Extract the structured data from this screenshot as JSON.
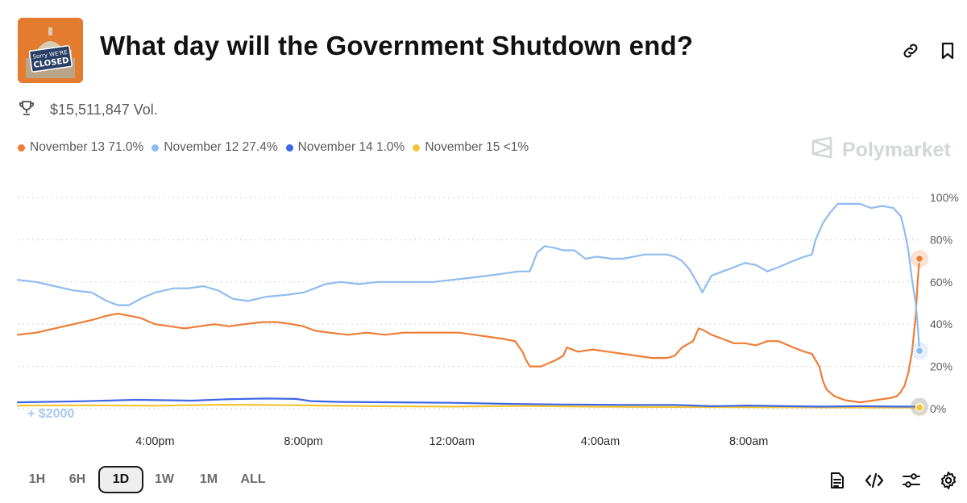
{
  "market": {
    "title": "What day will the Government Shutdown end?",
    "thumbnail_text": "CLOSED",
    "volume": "$15,511,847 Vol.",
    "brand": "Polymarket"
  },
  "legend": [
    {
      "label": "November 13 71.0%",
      "color": "#ee7d36"
    },
    {
      "label": "November 12 27.4%",
      "color": "#8fbcef"
    },
    {
      "label": "November 14 1.0%",
      "color": "#3e66e8"
    },
    {
      "label": "November 15 <1%",
      "color": "#f2c531"
    }
  ],
  "timeframes": {
    "items": [
      "1H",
      "6H",
      "1D",
      "1W",
      "1M",
      "ALL"
    ],
    "selected": "1D"
  },
  "icons": {
    "link": "link-icon",
    "bookmark": "bookmark-icon",
    "trophy": "trophy-icon",
    "document": "document-icon",
    "embed": "embed-icon",
    "filters": "sliders-icon",
    "settings": "gear-icon"
  },
  "chart_data": {
    "type": "line",
    "x_tick_labels": [
      "4:00pm",
      "8:00pm",
      "12:00am",
      "4:00am",
      "8:00am"
    ],
    "x_tick_hours": [
      4,
      8,
      12,
      16,
      20
    ],
    "x_range_hours": [
      0.3,
      24.6
    ],
    "y_tick_labels": [
      "100%",
      "80%",
      "60%",
      "40%",
      "20%",
      "0%"
    ],
    "ylim": [
      0,
      100
    ],
    "grid": true,
    "annotation": "+ $2000",
    "series": [
      {
        "name": "November 12",
        "color": "#8fbcef",
        "end_value": 27.4,
        "points": [
          [
            0.3,
            61
          ],
          [
            0.8,
            60
          ],
          [
            1.3,
            58
          ],
          [
            1.8,
            56
          ],
          [
            2.3,
            55
          ],
          [
            2.7,
            51
          ],
          [
            3.0,
            49
          ],
          [
            3.3,
            49
          ],
          [
            3.6,
            52
          ],
          [
            4.0,
            55
          ],
          [
            4.5,
            57
          ],
          [
            4.9,
            57
          ],
          [
            5.3,
            58
          ],
          [
            5.7,
            56
          ],
          [
            6.1,
            52
          ],
          [
            6.5,
            51
          ],
          [
            7.0,
            53
          ],
          [
            7.6,
            54
          ],
          [
            8.0,
            55
          ],
          [
            8.3,
            57
          ],
          [
            8.6,
            59
          ],
          [
            9.0,
            60
          ],
          [
            9.5,
            59
          ],
          [
            10.0,
            60
          ],
          [
            10.5,
            60
          ],
          [
            11.0,
            60
          ],
          [
            11.5,
            60
          ],
          [
            12.0,
            61
          ],
          [
            12.5,
            62
          ],
          [
            13.0,
            63
          ],
          [
            13.4,
            64
          ],
          [
            13.8,
            65
          ],
          [
            14.1,
            65
          ],
          [
            14.3,
            74
          ],
          [
            14.5,
            77
          ],
          [
            14.8,
            76
          ],
          [
            15.0,
            75
          ],
          [
            15.3,
            75
          ],
          [
            15.6,
            71
          ],
          [
            15.9,
            72
          ],
          [
            16.3,
            71
          ],
          [
            16.6,
            71
          ],
          [
            16.9,
            72
          ],
          [
            17.2,
            73
          ],
          [
            17.5,
            73
          ],
          [
            17.8,
            73
          ],
          [
            18.0,
            72
          ],
          [
            18.2,
            70
          ],
          [
            18.4,
            66
          ],
          [
            18.6,
            60
          ],
          [
            18.75,
            55
          ],
          [
            18.9,
            60
          ],
          [
            19.0,
            63
          ],
          [
            19.3,
            65
          ],
          [
            19.6,
            67
          ],
          [
            19.9,
            69
          ],
          [
            20.2,
            68
          ],
          [
            20.5,
            65
          ],
          [
            20.8,
            67
          ],
          [
            21.2,
            70
          ],
          [
            21.5,
            72
          ],
          [
            21.7,
            73
          ],
          [
            21.8,
            80
          ],
          [
            22.0,
            88
          ],
          [
            22.2,
            93
          ],
          [
            22.4,
            97
          ],
          [
            22.7,
            97
          ],
          [
            23.0,
            97
          ],
          [
            23.3,
            95
          ],
          [
            23.6,
            96
          ],
          [
            23.9,
            95
          ],
          [
            24.0,
            93
          ],
          [
            24.1,
            91
          ],
          [
            24.2,
            84
          ],
          [
            24.3,
            75
          ],
          [
            24.4,
            61
          ],
          [
            24.5,
            50
          ],
          [
            24.55,
            40
          ],
          [
            24.6,
            27.4
          ]
        ]
      },
      {
        "name": "November 13",
        "color": "#ee7d36",
        "end_value": 71.0,
        "points": [
          [
            0.3,
            35
          ],
          [
            0.8,
            36
          ],
          [
            1.3,
            38
          ],
          [
            1.8,
            40
          ],
          [
            2.3,
            42
          ],
          [
            2.7,
            44
          ],
          [
            3.0,
            45
          ],
          [
            3.3,
            44
          ],
          [
            3.6,
            43
          ],
          [
            4.0,
            40
          ],
          [
            4.4,
            39
          ],
          [
            4.8,
            38
          ],
          [
            5.2,
            39
          ],
          [
            5.6,
            40
          ],
          [
            6.0,
            39
          ],
          [
            6.4,
            40
          ],
          [
            6.9,
            41
          ],
          [
            7.3,
            41
          ],
          [
            7.7,
            40
          ],
          [
            8.0,
            39
          ],
          [
            8.3,
            37
          ],
          [
            8.7,
            36
          ],
          [
            9.2,
            35
          ],
          [
            9.7,
            36
          ],
          [
            10.2,
            35
          ],
          [
            10.7,
            36
          ],
          [
            11.2,
            36
          ],
          [
            11.7,
            36
          ],
          [
            12.2,
            36
          ],
          [
            12.6,
            35
          ],
          [
            13.0,
            34
          ],
          [
            13.4,
            33
          ],
          [
            13.7,
            32
          ],
          [
            13.9,
            27
          ],
          [
            14.0,
            23
          ],
          [
            14.1,
            20
          ],
          [
            14.4,
            20
          ],
          [
            14.8,
            23
          ],
          [
            15.0,
            25
          ],
          [
            15.1,
            29
          ],
          [
            15.4,
            27
          ],
          [
            15.8,
            28
          ],
          [
            16.2,
            27
          ],
          [
            16.6,
            26
          ],
          [
            17.0,
            25
          ],
          [
            17.4,
            24
          ],
          [
            17.8,
            24
          ],
          [
            18.0,
            25
          ],
          [
            18.2,
            29
          ],
          [
            18.5,
            32
          ],
          [
            18.65,
            38
          ],
          [
            18.8,
            37
          ],
          [
            19.0,
            35
          ],
          [
            19.3,
            33
          ],
          [
            19.6,
            31
          ],
          [
            19.9,
            31
          ],
          [
            20.2,
            30
          ],
          [
            20.5,
            32
          ],
          [
            20.8,
            32
          ],
          [
            21.2,
            29
          ],
          [
            21.5,
            27
          ],
          [
            21.7,
            26
          ],
          [
            21.9,
            20
          ],
          [
            22.0,
            13
          ],
          [
            22.1,
            9
          ],
          [
            22.3,
            6
          ],
          [
            22.6,
            4
          ],
          [
            23.0,
            3
          ],
          [
            23.4,
            4
          ],
          [
            23.8,
            5
          ],
          [
            24.0,
            6
          ],
          [
            24.1,
            8
          ],
          [
            24.2,
            11
          ],
          [
            24.3,
            17
          ],
          [
            24.4,
            27
          ],
          [
            24.5,
            44
          ],
          [
            24.55,
            60
          ],
          [
            24.6,
            71.0
          ]
        ]
      },
      {
        "name": "November 14",
        "color": "#3e66e8",
        "end_value": 1.0,
        "points": [
          [
            0.3,
            3
          ],
          [
            2.0,
            3.5
          ],
          [
            3.5,
            4.2
          ],
          [
            5.0,
            3.8
          ],
          [
            6.0,
            4.5
          ],
          [
            7.0,
            4.8
          ],
          [
            7.8,
            4.6
          ],
          [
            8.2,
            3.6
          ],
          [
            9.0,
            3.2
          ],
          [
            10.5,
            3
          ],
          [
            12.0,
            2.8
          ],
          [
            13.5,
            2.3
          ],
          [
            15.0,
            2
          ],
          [
            16.5,
            1.8
          ],
          [
            18.0,
            1.8
          ],
          [
            19.0,
            1.2
          ],
          [
            20.0,
            1.5
          ],
          [
            21.0,
            1.2
          ],
          [
            22.0,
            1
          ],
          [
            23.0,
            1.2
          ],
          [
            24.0,
            1
          ],
          [
            24.6,
            1.0
          ]
        ]
      },
      {
        "name": "November 15",
        "color": "#f2c531",
        "end_value": 0.5,
        "points": [
          [
            0.3,
            1.5
          ],
          [
            2.0,
            1.6
          ],
          [
            4.0,
            1.4
          ],
          [
            6.0,
            1.9
          ],
          [
            8.0,
            1.6
          ],
          [
            10.0,
            1.2
          ],
          [
            12.0,
            1.0
          ],
          [
            14.0,
            1.3
          ],
          [
            16.0,
            0.9
          ],
          [
            18.0,
            0.8
          ],
          [
            20.0,
            0.7
          ],
          [
            22.0,
            0.6
          ],
          [
            24.0,
            0.5
          ],
          [
            24.6,
            0.5
          ]
        ]
      }
    ]
  }
}
